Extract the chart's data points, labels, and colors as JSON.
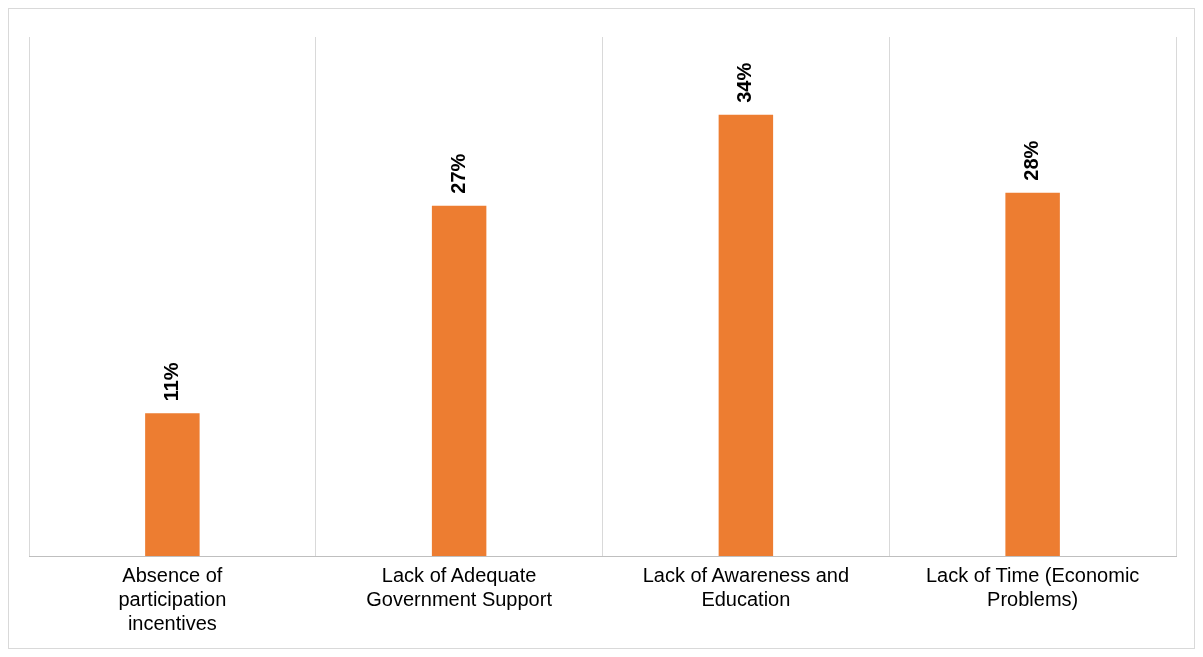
{
  "chart_data": {
    "type": "bar",
    "categories": [
      "Absence of participation incentives",
      "Lack of Adequate Government Support",
      "Lack of Awareness and Education",
      "Lack of Time (Economic Problems)"
    ],
    "values": [
      11,
      27,
      34,
      28
    ],
    "color": "#ed7d31",
    "value_labels": [
      "11%",
      "27%",
      "34%",
      "28%"
    ],
    "grid": "x",
    "legend": false,
    "tick_labels": "x"
  }
}
